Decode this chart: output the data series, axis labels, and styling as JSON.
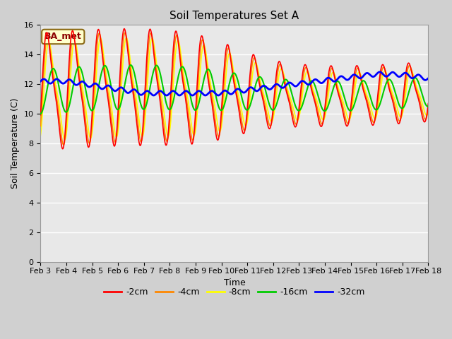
{
  "title": "Soil Temperatures Set A",
  "xlabel": "Time",
  "ylabel": "Soil Temperature (C)",
  "annotation": "BA_met",
  "ylim": [
    0,
    16
  ],
  "yticks": [
    0,
    2,
    4,
    6,
    8,
    10,
    12,
    14,
    16
  ],
  "xtick_labels": [
    "Feb 3",
    "Feb 4",
    "Feb 5",
    "Feb 6",
    "Feb 7",
    "Feb 8",
    "Feb 9",
    "Feb 10",
    "Feb 11",
    "Feb 12",
    "Feb 13",
    "Feb 14",
    "Feb 15",
    "Feb 16",
    "Feb 17",
    "Feb 18"
  ],
  "colors": {
    "-2cm": "#ff0000",
    "-4cm": "#ff8800",
    "-8cm": "#ffff00",
    "-16cm": "#00cc00",
    "-32cm": "#0000ff"
  },
  "line_widths": {
    "-2cm": 1.2,
    "-4cm": 1.2,
    "-8cm": 1.2,
    "-16cm": 1.5,
    "-32cm": 2.0
  },
  "plot_bg_color": "#e8e8e8",
  "fig_bg_color": "#d0d0d0",
  "grid_color": "#ffffff",
  "title_fontsize": 11,
  "axis_label_fontsize": 9,
  "tick_fontsize": 8,
  "legend_fontsize": 9,
  "n_days": 15,
  "base_temp": 11.5
}
